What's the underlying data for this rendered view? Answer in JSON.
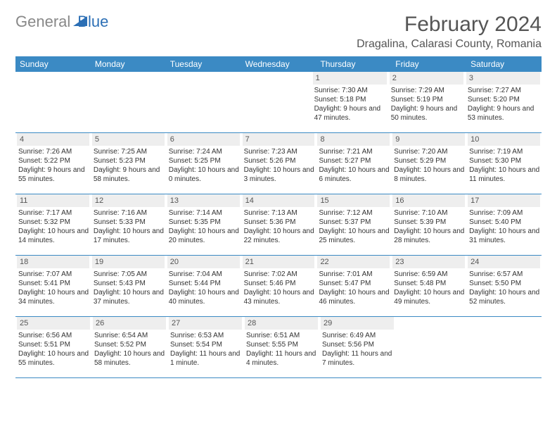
{
  "logo": {
    "textGray": "General",
    "textBlue": "Blue"
  },
  "title": "February 2024",
  "location": "Dragalina, Calarasi County, Romania",
  "colors": {
    "headerBg": "#3b8ac4",
    "headerText": "#ffffff",
    "dayNumBg": "#eeeeee",
    "borderColor": "#3b8ac4",
    "logoGray": "#888888",
    "logoBlue": "#2c6fb5",
    "bodyText": "#333333"
  },
  "dayHeaders": [
    "Sunday",
    "Monday",
    "Tuesday",
    "Wednesday",
    "Thursday",
    "Friday",
    "Saturday"
  ],
  "weeks": [
    [
      null,
      null,
      null,
      null,
      {
        "num": "1",
        "sunrise": "Sunrise: 7:30 AM",
        "sunset": "Sunset: 5:18 PM",
        "daylight": "Daylight: 9 hours and 47 minutes."
      },
      {
        "num": "2",
        "sunrise": "Sunrise: 7:29 AM",
        "sunset": "Sunset: 5:19 PM",
        "daylight": "Daylight: 9 hours and 50 minutes."
      },
      {
        "num": "3",
        "sunrise": "Sunrise: 7:27 AM",
        "sunset": "Sunset: 5:20 PM",
        "daylight": "Daylight: 9 hours and 53 minutes."
      }
    ],
    [
      {
        "num": "4",
        "sunrise": "Sunrise: 7:26 AM",
        "sunset": "Sunset: 5:22 PM",
        "daylight": "Daylight: 9 hours and 55 minutes."
      },
      {
        "num": "5",
        "sunrise": "Sunrise: 7:25 AM",
        "sunset": "Sunset: 5:23 PM",
        "daylight": "Daylight: 9 hours and 58 minutes."
      },
      {
        "num": "6",
        "sunrise": "Sunrise: 7:24 AM",
        "sunset": "Sunset: 5:25 PM",
        "daylight": "Daylight: 10 hours and 0 minutes."
      },
      {
        "num": "7",
        "sunrise": "Sunrise: 7:23 AM",
        "sunset": "Sunset: 5:26 PM",
        "daylight": "Daylight: 10 hours and 3 minutes."
      },
      {
        "num": "8",
        "sunrise": "Sunrise: 7:21 AM",
        "sunset": "Sunset: 5:27 PM",
        "daylight": "Daylight: 10 hours and 6 minutes."
      },
      {
        "num": "9",
        "sunrise": "Sunrise: 7:20 AM",
        "sunset": "Sunset: 5:29 PM",
        "daylight": "Daylight: 10 hours and 8 minutes."
      },
      {
        "num": "10",
        "sunrise": "Sunrise: 7:19 AM",
        "sunset": "Sunset: 5:30 PM",
        "daylight": "Daylight: 10 hours and 11 minutes."
      }
    ],
    [
      {
        "num": "11",
        "sunrise": "Sunrise: 7:17 AM",
        "sunset": "Sunset: 5:32 PM",
        "daylight": "Daylight: 10 hours and 14 minutes."
      },
      {
        "num": "12",
        "sunrise": "Sunrise: 7:16 AM",
        "sunset": "Sunset: 5:33 PM",
        "daylight": "Daylight: 10 hours and 17 minutes."
      },
      {
        "num": "13",
        "sunrise": "Sunrise: 7:14 AM",
        "sunset": "Sunset: 5:35 PM",
        "daylight": "Daylight: 10 hours and 20 minutes."
      },
      {
        "num": "14",
        "sunrise": "Sunrise: 7:13 AM",
        "sunset": "Sunset: 5:36 PM",
        "daylight": "Daylight: 10 hours and 22 minutes."
      },
      {
        "num": "15",
        "sunrise": "Sunrise: 7:12 AM",
        "sunset": "Sunset: 5:37 PM",
        "daylight": "Daylight: 10 hours and 25 minutes."
      },
      {
        "num": "16",
        "sunrise": "Sunrise: 7:10 AM",
        "sunset": "Sunset: 5:39 PM",
        "daylight": "Daylight: 10 hours and 28 minutes."
      },
      {
        "num": "17",
        "sunrise": "Sunrise: 7:09 AM",
        "sunset": "Sunset: 5:40 PM",
        "daylight": "Daylight: 10 hours and 31 minutes."
      }
    ],
    [
      {
        "num": "18",
        "sunrise": "Sunrise: 7:07 AM",
        "sunset": "Sunset: 5:41 PM",
        "daylight": "Daylight: 10 hours and 34 minutes."
      },
      {
        "num": "19",
        "sunrise": "Sunrise: 7:05 AM",
        "sunset": "Sunset: 5:43 PM",
        "daylight": "Daylight: 10 hours and 37 minutes."
      },
      {
        "num": "20",
        "sunrise": "Sunrise: 7:04 AM",
        "sunset": "Sunset: 5:44 PM",
        "daylight": "Daylight: 10 hours and 40 minutes."
      },
      {
        "num": "21",
        "sunrise": "Sunrise: 7:02 AM",
        "sunset": "Sunset: 5:46 PM",
        "daylight": "Daylight: 10 hours and 43 minutes."
      },
      {
        "num": "22",
        "sunrise": "Sunrise: 7:01 AM",
        "sunset": "Sunset: 5:47 PM",
        "daylight": "Daylight: 10 hours and 46 minutes."
      },
      {
        "num": "23",
        "sunrise": "Sunrise: 6:59 AM",
        "sunset": "Sunset: 5:48 PM",
        "daylight": "Daylight: 10 hours and 49 minutes."
      },
      {
        "num": "24",
        "sunrise": "Sunrise: 6:57 AM",
        "sunset": "Sunset: 5:50 PM",
        "daylight": "Daylight: 10 hours and 52 minutes."
      }
    ],
    [
      {
        "num": "25",
        "sunrise": "Sunrise: 6:56 AM",
        "sunset": "Sunset: 5:51 PM",
        "daylight": "Daylight: 10 hours and 55 minutes."
      },
      {
        "num": "26",
        "sunrise": "Sunrise: 6:54 AM",
        "sunset": "Sunset: 5:52 PM",
        "daylight": "Daylight: 10 hours and 58 minutes."
      },
      {
        "num": "27",
        "sunrise": "Sunrise: 6:53 AM",
        "sunset": "Sunset: 5:54 PM",
        "daylight": "Daylight: 11 hours and 1 minute."
      },
      {
        "num": "28",
        "sunrise": "Sunrise: 6:51 AM",
        "sunset": "Sunset: 5:55 PM",
        "daylight": "Daylight: 11 hours and 4 minutes."
      },
      {
        "num": "29",
        "sunrise": "Sunrise: 6:49 AM",
        "sunset": "Sunset: 5:56 PM",
        "daylight": "Daylight: 11 hours and 7 minutes."
      },
      null,
      null
    ]
  ]
}
